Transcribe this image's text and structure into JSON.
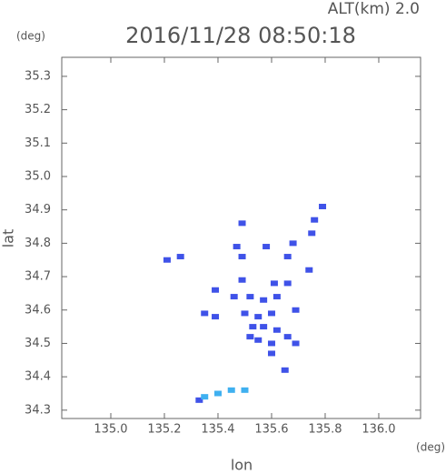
{
  "chart_data": {
    "type": "scatter",
    "title": "2016/11/28 08:50:18",
    "subtitle": "ALT(km) 2.0",
    "y_unit": "(deg)",
    "x_unit": "(deg)",
    "x_label": "lon",
    "y_label": "lat",
    "xlim": [
      134.817,
      136.156
    ],
    "ylim": [
      34.275,
      35.357
    ],
    "xticks": [
      {
        "value": 135.0,
        "label": "135.0"
      },
      135.2,
      135.4,
      135.6,
      135.8,
      {
        "value": 136.0,
        "label": "136.0"
      }
    ],
    "yticks": [
      34.3,
      34.4,
      34.5,
      34.6,
      34.7,
      34.8,
      34.9,
      {
        "value": 35.0,
        "label": "35.0"
      },
      35.1,
      35.2,
      35.3
    ],
    "series": [
      {
        "color": "#3f52e8",
        "x": [
          135.79,
          135.76,
          135.75,
          135.49,
          135.58,
          135.68,
          135.47,
          135.21,
          135.26,
          135.49,
          135.66,
          135.74,
          135.49,
          135.61,
          135.66,
          135.39,
          135.46,
          135.52,
          135.57,
          135.62,
          135.35,
          135.39,
          135.5,
          135.55,
          135.6,
          135.69,
          135.53,
          135.57,
          135.62,
          135.52,
          135.55,
          135.6,
          135.66,
          135.6,
          135.65,
          135.69,
          135.33
        ],
        "y": [
          34.91,
          34.87,
          34.83,
          34.86,
          34.79,
          34.8,
          34.79,
          34.75,
          34.76,
          34.76,
          34.76,
          34.72,
          34.69,
          34.68,
          34.68,
          34.66,
          34.64,
          34.64,
          34.63,
          34.64,
          34.59,
          34.58,
          34.59,
          34.58,
          34.59,
          34.6,
          34.55,
          34.55,
          34.54,
          34.52,
          34.51,
          34.5,
          34.52,
          34.47,
          34.42,
          34.5,
          34.33
        ]
      },
      {
        "color": "#3fb0f0",
        "x": [
          135.35,
          135.4,
          135.45,
          135.5
        ],
        "y": [
          34.34,
          34.35,
          34.36,
          34.36
        ]
      }
    ]
  }
}
